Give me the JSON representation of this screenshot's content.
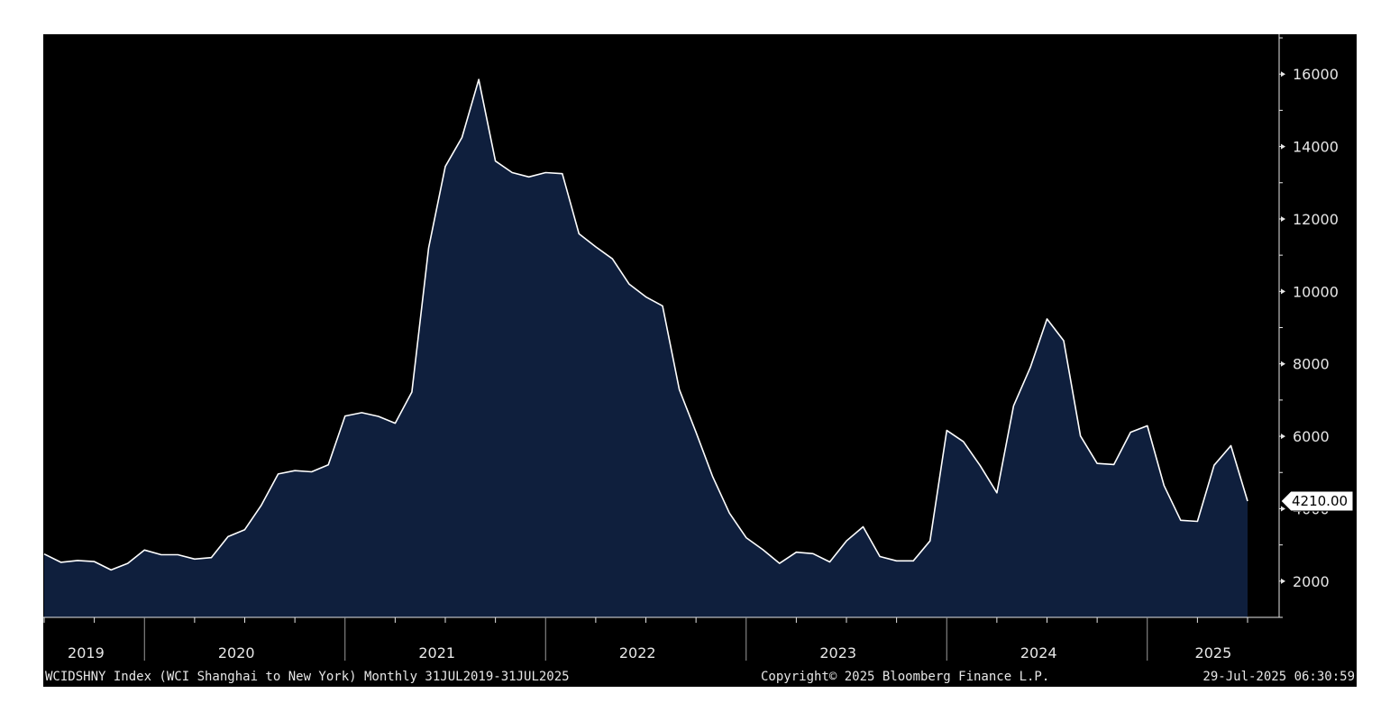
{
  "chart_data": {
    "type": "area",
    "frequency": "monthly",
    "x_start": "2019-07",
    "x_end": "2025-07",
    "y_ticks": [
      2000,
      4000,
      6000,
      8000,
      10000,
      12000,
      14000,
      16000
    ],
    "y_tick_labels": [
      "2000",
      "4000",
      "6000",
      "8000",
      "10000",
      "12000",
      "14000",
      "16000"
    ],
    "ylim": [
      1000,
      17100
    ],
    "year_labels": [
      "2019",
      "2020",
      "2021",
      "2022",
      "2023",
      "2024",
      "2025"
    ],
    "series": [
      {
        "x": [
          "2019-07",
          "2019-08",
          "2019-09",
          "2019-10",
          "2019-11",
          "2019-12",
          "2020-01",
          "2020-02",
          "2020-03",
          "2020-04",
          "2020-05",
          "2020-06",
          "2020-07",
          "2020-08",
          "2020-09",
          "2020-10",
          "2020-11",
          "2020-12",
          "2021-01",
          "2021-02",
          "2021-03",
          "2021-04",
          "2021-05",
          "2021-06",
          "2021-07",
          "2021-08",
          "2021-09",
          "2021-10",
          "2021-11",
          "2021-12",
          "2022-01",
          "2022-02",
          "2022-03",
          "2022-04",
          "2022-05",
          "2022-06",
          "2022-07",
          "2022-08",
          "2022-09",
          "2022-10",
          "2022-11",
          "2022-12",
          "2023-01",
          "2023-02",
          "2023-03",
          "2023-04",
          "2023-05",
          "2023-06",
          "2023-07",
          "2023-08",
          "2023-09",
          "2023-10",
          "2023-11",
          "2023-12",
          "2024-01",
          "2024-02",
          "2024-03",
          "2024-04",
          "2024-05",
          "2024-06",
          "2024-07",
          "2024-08",
          "2024-09",
          "2024-10",
          "2024-11",
          "2024-12",
          "2025-01",
          "2025-02",
          "2025-03",
          "2025-04",
          "2025-05",
          "2025-06",
          "2025-07"
        ],
        "values": [
          2750,
          2520,
          2570,
          2540,
          2310,
          2490,
          2860,
          2730,
          2730,
          2610,
          2650,
          3230,
          3420,
          4100,
          4960,
          5050,
          5020,
          5210,
          6560,
          6650,
          6550,
          6360,
          7220,
          11200,
          13450,
          14250,
          15850,
          13600,
          13280,
          13160,
          13280,
          13250,
          11590,
          11230,
          10900,
          10200,
          9850,
          9600,
          7290,
          6110,
          4880,
          3880,
          3200,
          2870,
          2490,
          2800,
          2760,
          2530,
          3110,
          3500,
          2680,
          2560,
          2560,
          3110,
          6160,
          5850,
          5190,
          4440,
          6840,
          7900,
          9240,
          8640,
          6010,
          5250,
          5220,
          6110,
          6290,
          4640,
          3680,
          3650,
          5200,
          5740,
          4210
        ]
      }
    ],
    "last_value_label": "4210.00",
    "colors": {
      "background": "#000000",
      "fill": "#0f1f3d",
      "line": "#ffffff",
      "text": "#e6e6e6"
    }
  },
  "footer": {
    "left": "WCIDSHNY Index (WCI Shanghai to New York)  Monthly 31JUL2019-31JUL2025",
    "center": "Copyright© 2025 Bloomberg Finance L.P.",
    "right": "29-Jul-2025 06:30:59"
  }
}
